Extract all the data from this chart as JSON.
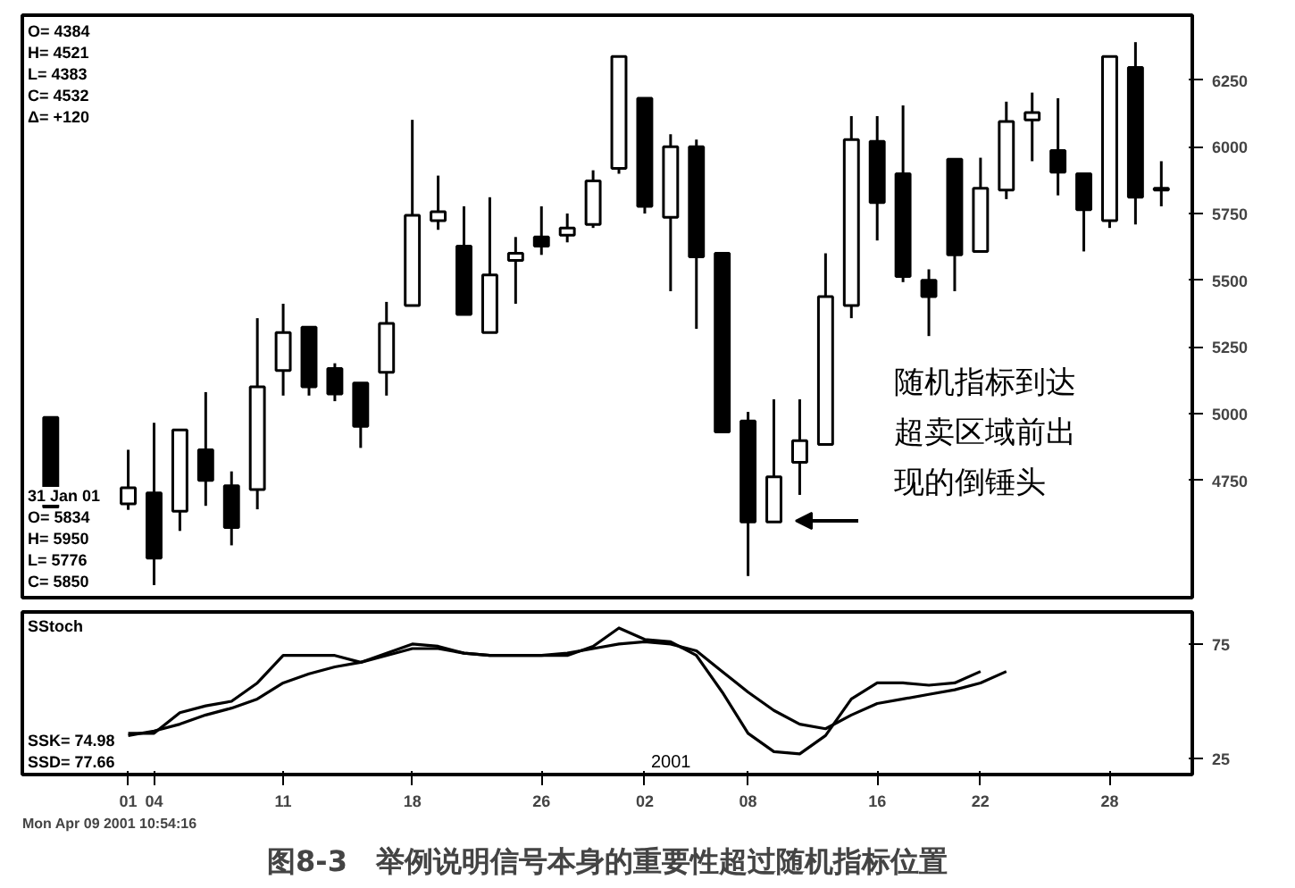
{
  "chart_data": [
    {
      "type": "candlestick",
      "categories": [
        null,
        null,
        null,
        null,
        null,
        null,
        null,
        null,
        null,
        null,
        null,
        null,
        null,
        null,
        null,
        null,
        null,
        null,
        null,
        null,
        null,
        null,
        null,
        null,
        null,
        null,
        null,
        null,
        null,
        null,
        null,
        null,
        null,
        null,
        null,
        null,
        null,
        null,
        null,
        null,
        null,
        null,
        null,
        null
      ],
      "ohlc": [
        [
          4986,
          4990,
          4640,
          4649
        ],
        null,
        null,
        [
          4662,
          4865,
          4640,
          4723
        ],
        [
          4703,
          4966,
          4358,
          4459
        ],
        [
          4635,
          4939,
          4561,
          4939
        ],
        [
          4865,
          5081,
          4655,
          4750
        ],
        [
          4730,
          4784,
          4507,
          4574
        ],
        [
          4716,
          5358,
          4642,
          5101
        ],
        [
          5162,
          5412,
          5068,
          5304
        ],
        [
          5324,
          5324,
          5068,
          5101
        ],
        [
          5169,
          5189,
          5047,
          5074
        ],
        [
          5115,
          5115,
          4872,
          4953
        ],
        [
          5155,
          5419,
          5068,
          5338
        ],
        [
          5405,
          6101,
          5405,
          5743
        ],
        [
          5723,
          5892,
          5689,
          5757
        ],
        [
          5628,
          5777,
          5372,
          5372
        ],
        [
          5304,
          5811,
          5304,
          5520
        ],
        [
          5574,
          5662,
          5412,
          5601
        ],
        [
          5662,
          5777,
          5595,
          5628
        ],
        [
          5669,
          5750,
          5642,
          5696
        ],
        [
          5709,
          5912,
          5696,
          5872
        ],
        [
          5919,
          6338,
          5899,
          6338
        ],
        [
          6182,
          6182,
          5750,
          5777
        ],
        [
          5736,
          6047,
          5459,
          6000
        ],
        [
          6000,
          6027,
          5318,
          5588
        ],
        [
          5601,
          5601,
          4932,
          4932
        ],
        [
          4973,
          5007,
          4392,
          4595
        ],
        [
          4595,
          5054,
          4595,
          4764
        ],
        [
          4818,
          5054,
          4696,
          4899
        ],
        [
          4885,
          5601,
          4885,
          5439
        ],
        [
          5405,
          6115,
          5358,
          6027
        ],
        [
          6020,
          6115,
          5649,
          5791
        ],
        [
          5899,
          6155,
          5493,
          5514
        ],
        [
          5500,
          5541,
          5291,
          5439
        ],
        [
          5953,
          5953,
          5459,
          5595
        ],
        [
          5608,
          5959,
          5608,
          5845
        ],
        [
          5838,
          6169,
          5804,
          6095
        ],
        [
          6101,
          6203,
          5946,
          6128
        ],
        [
          5986,
          6182,
          5818,
          5905
        ],
        [
          5899,
          5899,
          5608,
          5764
        ],
        [
          5723,
          6338,
          5696,
          6338
        ],
        [
          6297,
          6392,
          5709,
          5811
        ],
        [
          5845,
          5946,
          5777,
          5838
        ]
      ],
      "ylim": [
        4311,
        6493
      ],
      "yticks": [
        4750,
        5000,
        5250,
        5500,
        5750,
        6000,
        6250
      ],
      "tick_labels": "y",
      "annotations": [
        "O= 4384",
        "H= 4521",
        "L= 4383",
        "C= 4532",
        "Δ= +120",
        "31 Jan 01",
        "O= 5834",
        "H= 5950",
        "L= 5776",
        "C= 5850",
        "随机指标到达",
        "超卖区域前出",
        "现的倒锤头"
      ]
    },
    {
      "type": "line",
      "title": "SStoch",
      "categories": [
        null,
        null,
        null,
        "01",
        "04",
        null,
        null,
        null,
        null,
        "11",
        null,
        null,
        null,
        null,
        "18",
        null,
        null,
        null,
        null,
        "26",
        null,
        null,
        null,
        "02",
        null,
        null,
        null,
        "08",
        null,
        null,
        null,
        null,
        "16",
        null,
        null,
        null,
        "22",
        null,
        null,
        null,
        null,
        "28",
        null,
        null
      ],
      "series": [
        {
          "color": "#000000",
          "values": [
            null,
            null,
            null,
            36,
            36,
            45,
            48,
            50,
            58,
            70,
            70,
            70,
            67,
            71,
            75,
            74,
            71,
            70,
            70,
            70,
            70,
            74,
            82,
            77,
            76,
            70,
            54,
            36,
            28,
            27,
            35,
            51,
            58,
            58,
            57,
            58,
            63,
            null,
            null,
            null,
            null,
            null,
            null,
            null
          ]
        },
        {
          "color": "#000000",
          "values": [
            null,
            null,
            null,
            35,
            37,
            40,
            44,
            47,
            51,
            58,
            62,
            65,
            67,
            70,
            73,
            73,
            71,
            70,
            70,
            70,
            71,
            73,
            75,
            76,
            75,
            72,
            63,
            54,
            46,
            40,
            38,
            44,
            49,
            51,
            53,
            55,
            58,
            63,
            null,
            null,
            null,
            null,
            null,
            null
          ]
        }
      ],
      "ylim": [
        18,
        89
      ],
      "yticks": [
        25,
        75
      ],
      "line_style": "solid",
      "annotations": [
        "SSK= 74.98",
        "SSD= 77.66",
        "2001",
        "Mon Apr 09 2001 10:54:16",
        "图8-3　举例说明信号本身的重要性超过随机指标位置"
      ]
    }
  ]
}
